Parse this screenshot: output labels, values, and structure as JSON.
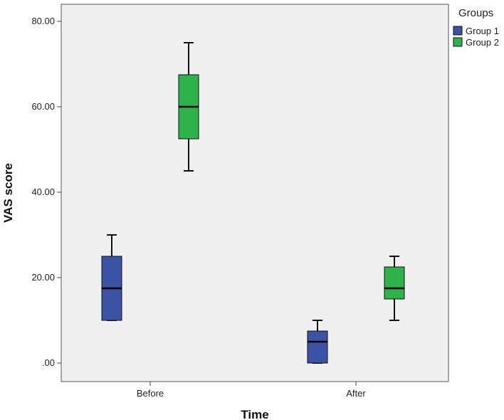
{
  "chart_data": {
    "type": "boxplot",
    "xlabel": "Time",
    "ylabel": "VAS score",
    "categories": [
      "Before",
      "After"
    ],
    "ylim": [
      -5,
      85
    ],
    "yticks": [
      0,
      20,
      40,
      60,
      80
    ],
    "ytick_labels": [
      ".00",
      "20.00",
      "40.00",
      "60.00",
      "80.00"
    ],
    "grid": false,
    "legend": {
      "title": "Groups",
      "position": "right"
    },
    "series": [
      {
        "name": "Group 1",
        "color": "#3b53a4",
        "boxes": [
          {
            "category": "Before",
            "min": 10,
            "q1": 10,
            "median": 17.5,
            "q3": 25,
            "max": 30
          },
          {
            "category": "After",
            "min": 0,
            "q1": 0,
            "median": 5,
            "q3": 7.5,
            "max": 10
          }
        ]
      },
      {
        "name": "Group 2",
        "color": "#2eb24a",
        "boxes": [
          {
            "category": "Before",
            "min": 45,
            "q1": 52.5,
            "median": 60,
            "q3": 67.5,
            "max": 75
          },
          {
            "category": "After",
            "min": 10,
            "q1": 15,
            "median": 17.5,
            "q3": 22.5,
            "max": 25
          }
        ]
      }
    ],
    "plot_background": "#f0f0f0"
  }
}
